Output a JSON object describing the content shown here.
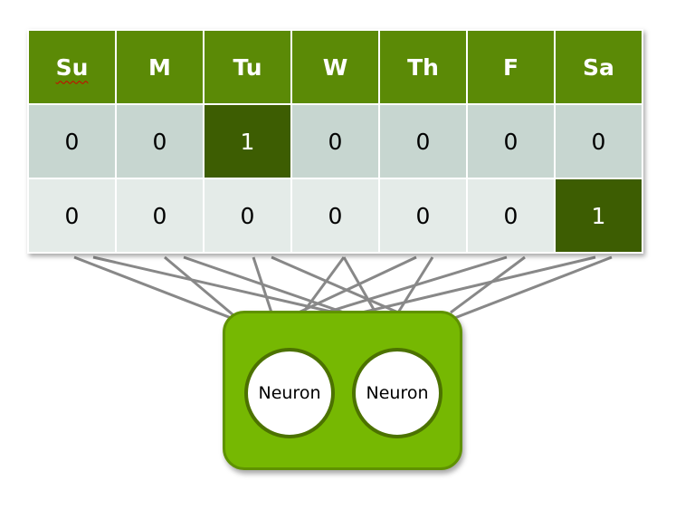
{
  "table": {
    "headers": [
      "Su",
      "M",
      "Tu",
      "W",
      "Th",
      "F",
      "Sa"
    ],
    "rows": [
      [
        "0",
        "0",
        "1",
        "0",
        "0",
        "0",
        "0"
      ],
      [
        "0",
        "0",
        "0",
        "0",
        "0",
        "0",
        "1"
      ]
    ]
  },
  "neurons": [
    {
      "label": "Neuron"
    },
    {
      "label": "Neuron"
    }
  ],
  "colors": {
    "header": "#5b8a06",
    "hot_cell": "#3d5d02",
    "row_a": "#c7d6d0",
    "row_b": "#e4ebe8",
    "neuron_box": "#76b802",
    "connection_line": "#888888"
  }
}
